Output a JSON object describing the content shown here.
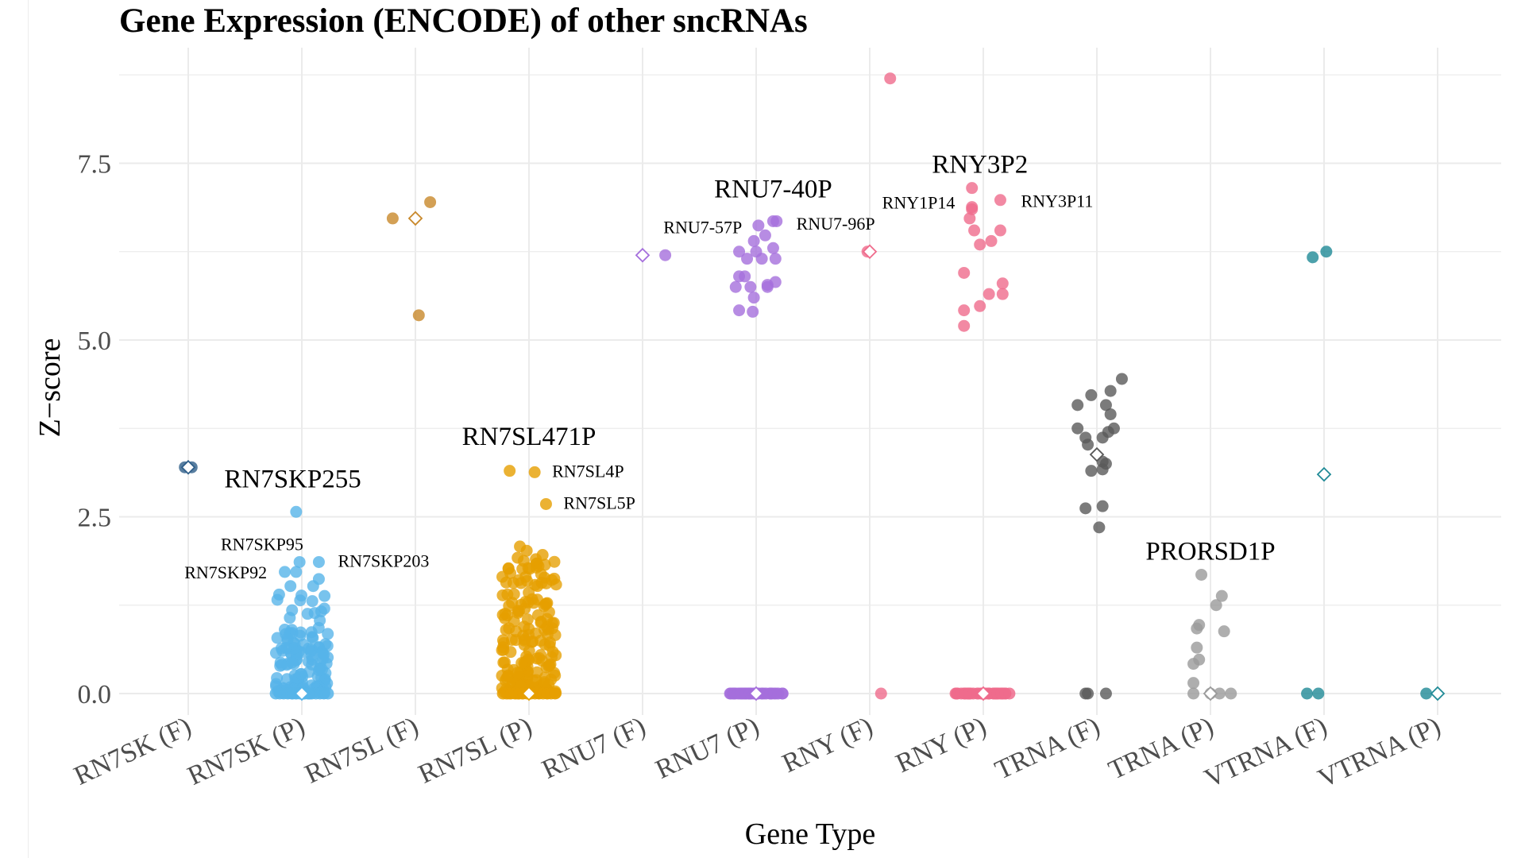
{
  "chart_data": {
    "type": "scatter",
    "title": "Gene Expression (ENCODE) of other sncRNAs",
    "xlabel": "Gene Type",
    "ylabel": "Z−score",
    "categories": [
      "RN7SK (F)",
      "RN7SK (P)",
      "RN7SL (F)",
      "RN7SL (P)",
      "RNU7 (F)",
      "RNU7 (P)",
      "RNY (F)",
      "RNY (P)",
      "TRNA (F)",
      "TRNA (P)",
      "VTRNA (F)",
      "VTRNA (P)"
    ],
    "ylim": [
      -0.4,
      8.8
    ],
    "yticks": [
      0.0,
      2.5,
      5.0,
      7.5
    ],
    "ytick_labels": [
      "0.0",
      "2.5",
      "5.0",
      "7.5"
    ],
    "grid": true,
    "legend": "none",
    "colors": {
      "RN7SK": "#56b4e9",
      "RN7SK_F": "#2f5f8a",
      "RN7SL": "#e69f00",
      "RN7SL_F": "#c8882a",
      "RNU7": "#a56fdc",
      "RNY": "#ef6b8c",
      "TRNA_F": "#5a5a5a",
      "TRNA_P": "#9a9a9a",
      "VTRNA": "#1f8a96"
    },
    "series": [
      {
        "category": "RN7SK (F)",
        "color": "#2f5f8a",
        "points": [
          [
            -0.03,
            3.2
          ],
          [
            0.03,
            3.2
          ]
        ],
        "median": 3.2,
        "dense": null
      },
      {
        "category": "RN7SK (P)",
        "color": "#56b4e9",
        "points": [
          [
            -0.05,
            2.57
          ],
          [
            -0.15,
            1.72
          ],
          [
            -0.02,
            1.86
          ],
          [
            0.15,
            1.86
          ],
          [
            -0.05,
            1.72
          ],
          [
            0.15,
            1.62
          ],
          [
            -0.1,
            1.52
          ],
          [
            0.1,
            1.52
          ],
          [
            -0.2,
            1.4
          ],
          [
            0.2,
            1.38
          ]
        ],
        "median": 0.0,
        "dense": {
          "ymin": 0.0,
          "ymax": 1.4,
          "n": 140,
          "spread": 0.23,
          "skew": 2.2
        }
      },
      {
        "category": "RN7SL (F)",
        "color": "#c8882a",
        "points": [
          [
            -0.2,
            6.72
          ],
          [
            0.13,
            6.95
          ],
          [
            0.03,
            5.35
          ]
        ],
        "median": 6.72,
        "dense": null
      },
      {
        "category": "RN7SL (P)",
        "color": "#e69f00",
        "points": [
          [
            -0.17,
            3.15
          ],
          [
            0.05,
            3.13
          ],
          [
            0.15,
            2.68
          ],
          [
            -0.08,
            2.08
          ],
          [
            -0.02,
            2.02
          ],
          [
            0.12,
            1.96
          ],
          [
            -0.1,
            1.92
          ],
          [
            0.06,
            1.9
          ]
        ],
        "median": 0.0,
        "dense": {
          "ymin": 0.0,
          "ymax": 1.9,
          "n": 180,
          "spread": 0.24,
          "skew": 1.8
        }
      },
      {
        "category": "RNU7 (F)",
        "color": "#a56fdc",
        "points": [
          [
            0.2,
            6.2
          ]
        ],
        "median": 6.2,
        "dense": null
      },
      {
        "category": "RNU7 (P)",
        "color": "#a56fdc",
        "points": [
          [
            0.02,
            6.62
          ],
          [
            0.15,
            6.68
          ],
          [
            0.18,
            6.68
          ],
          [
            0.08,
            6.48
          ],
          [
            -0.02,
            6.4
          ],
          [
            0.15,
            6.3
          ],
          [
            -0.15,
            6.25
          ],
          [
            0.0,
            6.25
          ],
          [
            -0.08,
            6.15
          ],
          [
            0.05,
            6.15
          ],
          [
            0.17,
            6.15
          ],
          [
            -0.15,
            5.9
          ],
          [
            -0.1,
            5.9
          ],
          [
            -0.05,
            5.75
          ],
          [
            -0.18,
            5.75
          ],
          [
            0.1,
            5.75
          ],
          [
            0.17,
            5.82
          ],
          [
            -0.02,
            5.6
          ],
          [
            -0.15,
            5.42
          ],
          [
            -0.03,
            5.4
          ],
          [
            0.1,
            5.78
          ]
        ],
        "median": 0.0,
        "dense": {
          "ymin": 0.0,
          "ymax": 0.0,
          "n": 22,
          "spread": 0.25,
          "skew": 1
        }
      },
      {
        "category": "RNY (F)",
        "color": "#ef6b8c",
        "points": [
          [
            0.18,
            8.7
          ],
          [
            -0.02,
            6.25
          ],
          [
            0.1,
            0.0
          ]
        ],
        "median": 6.25,
        "dense": null
      },
      {
        "category": "RNY (P)",
        "color": "#ef6b8c",
        "points": [
          [
            -0.1,
            7.15
          ],
          [
            -0.1,
            6.88
          ],
          [
            -0.1,
            6.85
          ],
          [
            0.15,
            6.98
          ],
          [
            -0.12,
            6.72
          ],
          [
            -0.08,
            6.55
          ],
          [
            0.15,
            6.55
          ],
          [
            -0.03,
            6.35
          ],
          [
            0.07,
            6.4
          ],
          [
            -0.17,
            5.95
          ],
          [
            0.17,
            5.8
          ],
          [
            0.17,
            5.65
          ],
          [
            0.05,
            5.65
          ],
          [
            -0.17,
            5.42
          ],
          [
            -0.03,
            5.48
          ],
          [
            -0.17,
            5.2
          ]
        ],
        "median": 0.0,
        "dense": {
          "ymin": 0.0,
          "ymax": 0.0,
          "n": 24,
          "spread": 0.25,
          "skew": 1
        }
      },
      {
        "category": "TRNA (F)",
        "color": "#5a5a5a",
        "points": [
          [
            0.22,
            4.45
          ],
          [
            0.12,
            4.28
          ],
          [
            -0.05,
            4.22
          ],
          [
            -0.17,
            4.08
          ],
          [
            0.08,
            4.08
          ],
          [
            0.12,
            3.95
          ],
          [
            -0.17,
            3.75
          ],
          [
            0.15,
            3.75
          ],
          [
            -0.1,
            3.62
          ],
          [
            0.1,
            3.7
          ],
          [
            0.05,
            3.62
          ],
          [
            -0.08,
            3.52
          ],
          [
            0.05,
            3.28
          ],
          [
            0.08,
            3.25
          ],
          [
            0.05,
            3.17
          ],
          [
            -0.05,
            3.15
          ],
          [
            -0.1,
            2.62
          ],
          [
            0.05,
            2.65
          ],
          [
            0.02,
            2.35
          ],
          [
            0.08,
            0.0
          ],
          [
            -0.08,
            0.0
          ],
          [
            -0.1,
            0.0
          ]
        ],
        "median": 3.38,
        "dense": null
      },
      {
        "category": "TRNA (P)",
        "color": "#9a9a9a",
        "points": [
          [
            -0.08,
            1.68
          ],
          [
            0.1,
            1.38
          ],
          [
            0.05,
            1.25
          ],
          [
            -0.12,
            0.92
          ],
          [
            -0.1,
            0.97
          ],
          [
            0.12,
            0.88
          ],
          [
            -0.12,
            0.65
          ],
          [
            -0.1,
            0.48
          ],
          [
            -0.15,
            0.42
          ],
          [
            -0.15,
            0.15
          ],
          [
            0.08,
            0.0
          ],
          [
            0.18,
            0.0
          ],
          [
            -0.15,
            0.0
          ],
          [
            0.0,
            0.0
          ]
        ],
        "median": 0.0,
        "dense": null
      },
      {
        "category": "VTRNA (F)",
        "color": "#1f8a96",
        "points": [
          [
            -0.1,
            6.17
          ],
          [
            0.02,
            6.25
          ],
          [
            -0.15,
            0.0
          ],
          [
            -0.05,
            0.0
          ]
        ],
        "median": 3.1,
        "dense": null
      },
      {
        "category": "VTRNA (P)",
        "color": "#1f8a96",
        "points": [
          [
            -0.1,
            0.0
          ]
        ],
        "median": 0.0,
        "dense": null
      }
    ],
    "annotations": [
      {
        "text": "RN7SKP255",
        "category": "RN7SK (P)",
        "dx": -0.08,
        "y": 3.05,
        "size": "large"
      },
      {
        "text": "RN7SKP95",
        "category": "RN7SK (P)",
        "dx": -0.35,
        "y": 2.12,
        "size": "small"
      },
      {
        "text": "RN7SKP92",
        "category": "RN7SK (P)",
        "dx": -0.67,
        "y": 1.72,
        "size": "small"
      },
      {
        "text": "RN7SKP203",
        "category": "RN7SK (P)",
        "dx": 0.72,
        "y": 1.88,
        "size": "small"
      },
      {
        "text": "RN7SL471P",
        "category": "RN7SL (P)",
        "dx": 0.0,
        "y": 3.65,
        "size": "large"
      },
      {
        "text": "RN7SL4P",
        "category": "RN7SL (P)",
        "dx": 0.52,
        "y": 3.15,
        "size": "small"
      },
      {
        "text": "RN7SL5P",
        "category": "RN7SL (P)",
        "dx": 0.62,
        "y": 2.7,
        "size": "small"
      },
      {
        "text": "RNU7-40P",
        "category": "RNU7 (P)",
        "dx": 0.15,
        "y": 7.15,
        "size": "large"
      },
      {
        "text": "RNU7-57P",
        "category": "RNU7 (P)",
        "dx": -0.47,
        "y": 6.6,
        "size": "small"
      },
      {
        "text": "RNU7-96P",
        "category": "RNU7 (P)",
        "dx": 0.7,
        "y": 6.65,
        "size": "small"
      },
      {
        "text": "RNY3P2",
        "category": "RNY (P)",
        "dx": -0.03,
        "y": 7.5,
        "size": "large"
      },
      {
        "text": "RNY1P14",
        "category": "RNY (P)",
        "dx": -0.57,
        "y": 6.95,
        "size": "small"
      },
      {
        "text": "RNY3P11",
        "category": "RNY (P)",
        "dx": 0.65,
        "y": 6.97,
        "size": "small"
      },
      {
        "text": "PRORSD1P",
        "category": "TRNA (P)",
        "dx": 0.0,
        "y": 2.03,
        "size": "large"
      }
    ]
  }
}
